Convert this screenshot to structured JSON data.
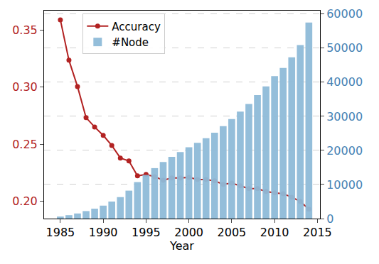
{
  "chart_data": {
    "type": "combo",
    "x_label": "Year",
    "x": [
      1985,
      1986,
      1987,
      1988,
      1989,
      1990,
      1991,
      1992,
      1993,
      1994,
      1995,
      1996,
      1997,
      1998,
      1999,
      2000,
      2001,
      2002,
      2003,
      2004,
      2005,
      2006,
      2007,
      2008,
      2009,
      2010,
      2011,
      2012,
      2013,
      2014
    ],
    "series": [
      {
        "name": "Accuracy",
        "type": "line",
        "color": "#b22222",
        "marker": "circle",
        "axis": "y",
        "values": [
          0.359,
          0.3236,
          0.3006,
          0.2733,
          0.2652,
          0.2578,
          0.249,
          0.238,
          0.2354,
          0.2224,
          0.2236,
          0.2217,
          0.2186,
          0.2205,
          0.2205,
          0.2211,
          0.2192,
          0.2192,
          0.218,
          0.215,
          0.216,
          0.2137,
          0.2112,
          0.2112,
          0.2087,
          0.2075,
          0.2068,
          0.2037,
          0.2,
          0.1932
        ]
      },
      {
        "name": "#Node",
        "type": "bar",
        "color": "#8fbbd9",
        "axis": "y2",
        "values": [
          600,
          1000,
          1500,
          2200,
          2900,
          3800,
          5000,
          6300,
          8200,
          10700,
          12800,
          14800,
          16600,
          18100,
          19500,
          20900,
          22200,
          23600,
          25200,
          27100,
          29200,
          31400,
          33600,
          36200,
          38800,
          41800,
          44200,
          47300,
          50900,
          57500
        ]
      }
    ],
    "xlim": [
      1983.1,
      2015.3
    ],
    "xticks": [
      1985,
      1990,
      1995,
      2000,
      2005,
      2010,
      2015
    ],
    "ylim": [
      0.185,
      0.367
    ],
    "yticks": [
      {
        "value": 0.2,
        "label": "0.20"
      },
      0.25,
      {
        "value": 0.3,
        "label": "0.30"
      },
      0.35
    ],
    "y2lim": [
      0,
      61000
    ],
    "y2ticks": [
      0,
      10000,
      20000,
      30000,
      40000,
      50000,
      60000
    ],
    "grid": true,
    "legend": "upper left"
  }
}
